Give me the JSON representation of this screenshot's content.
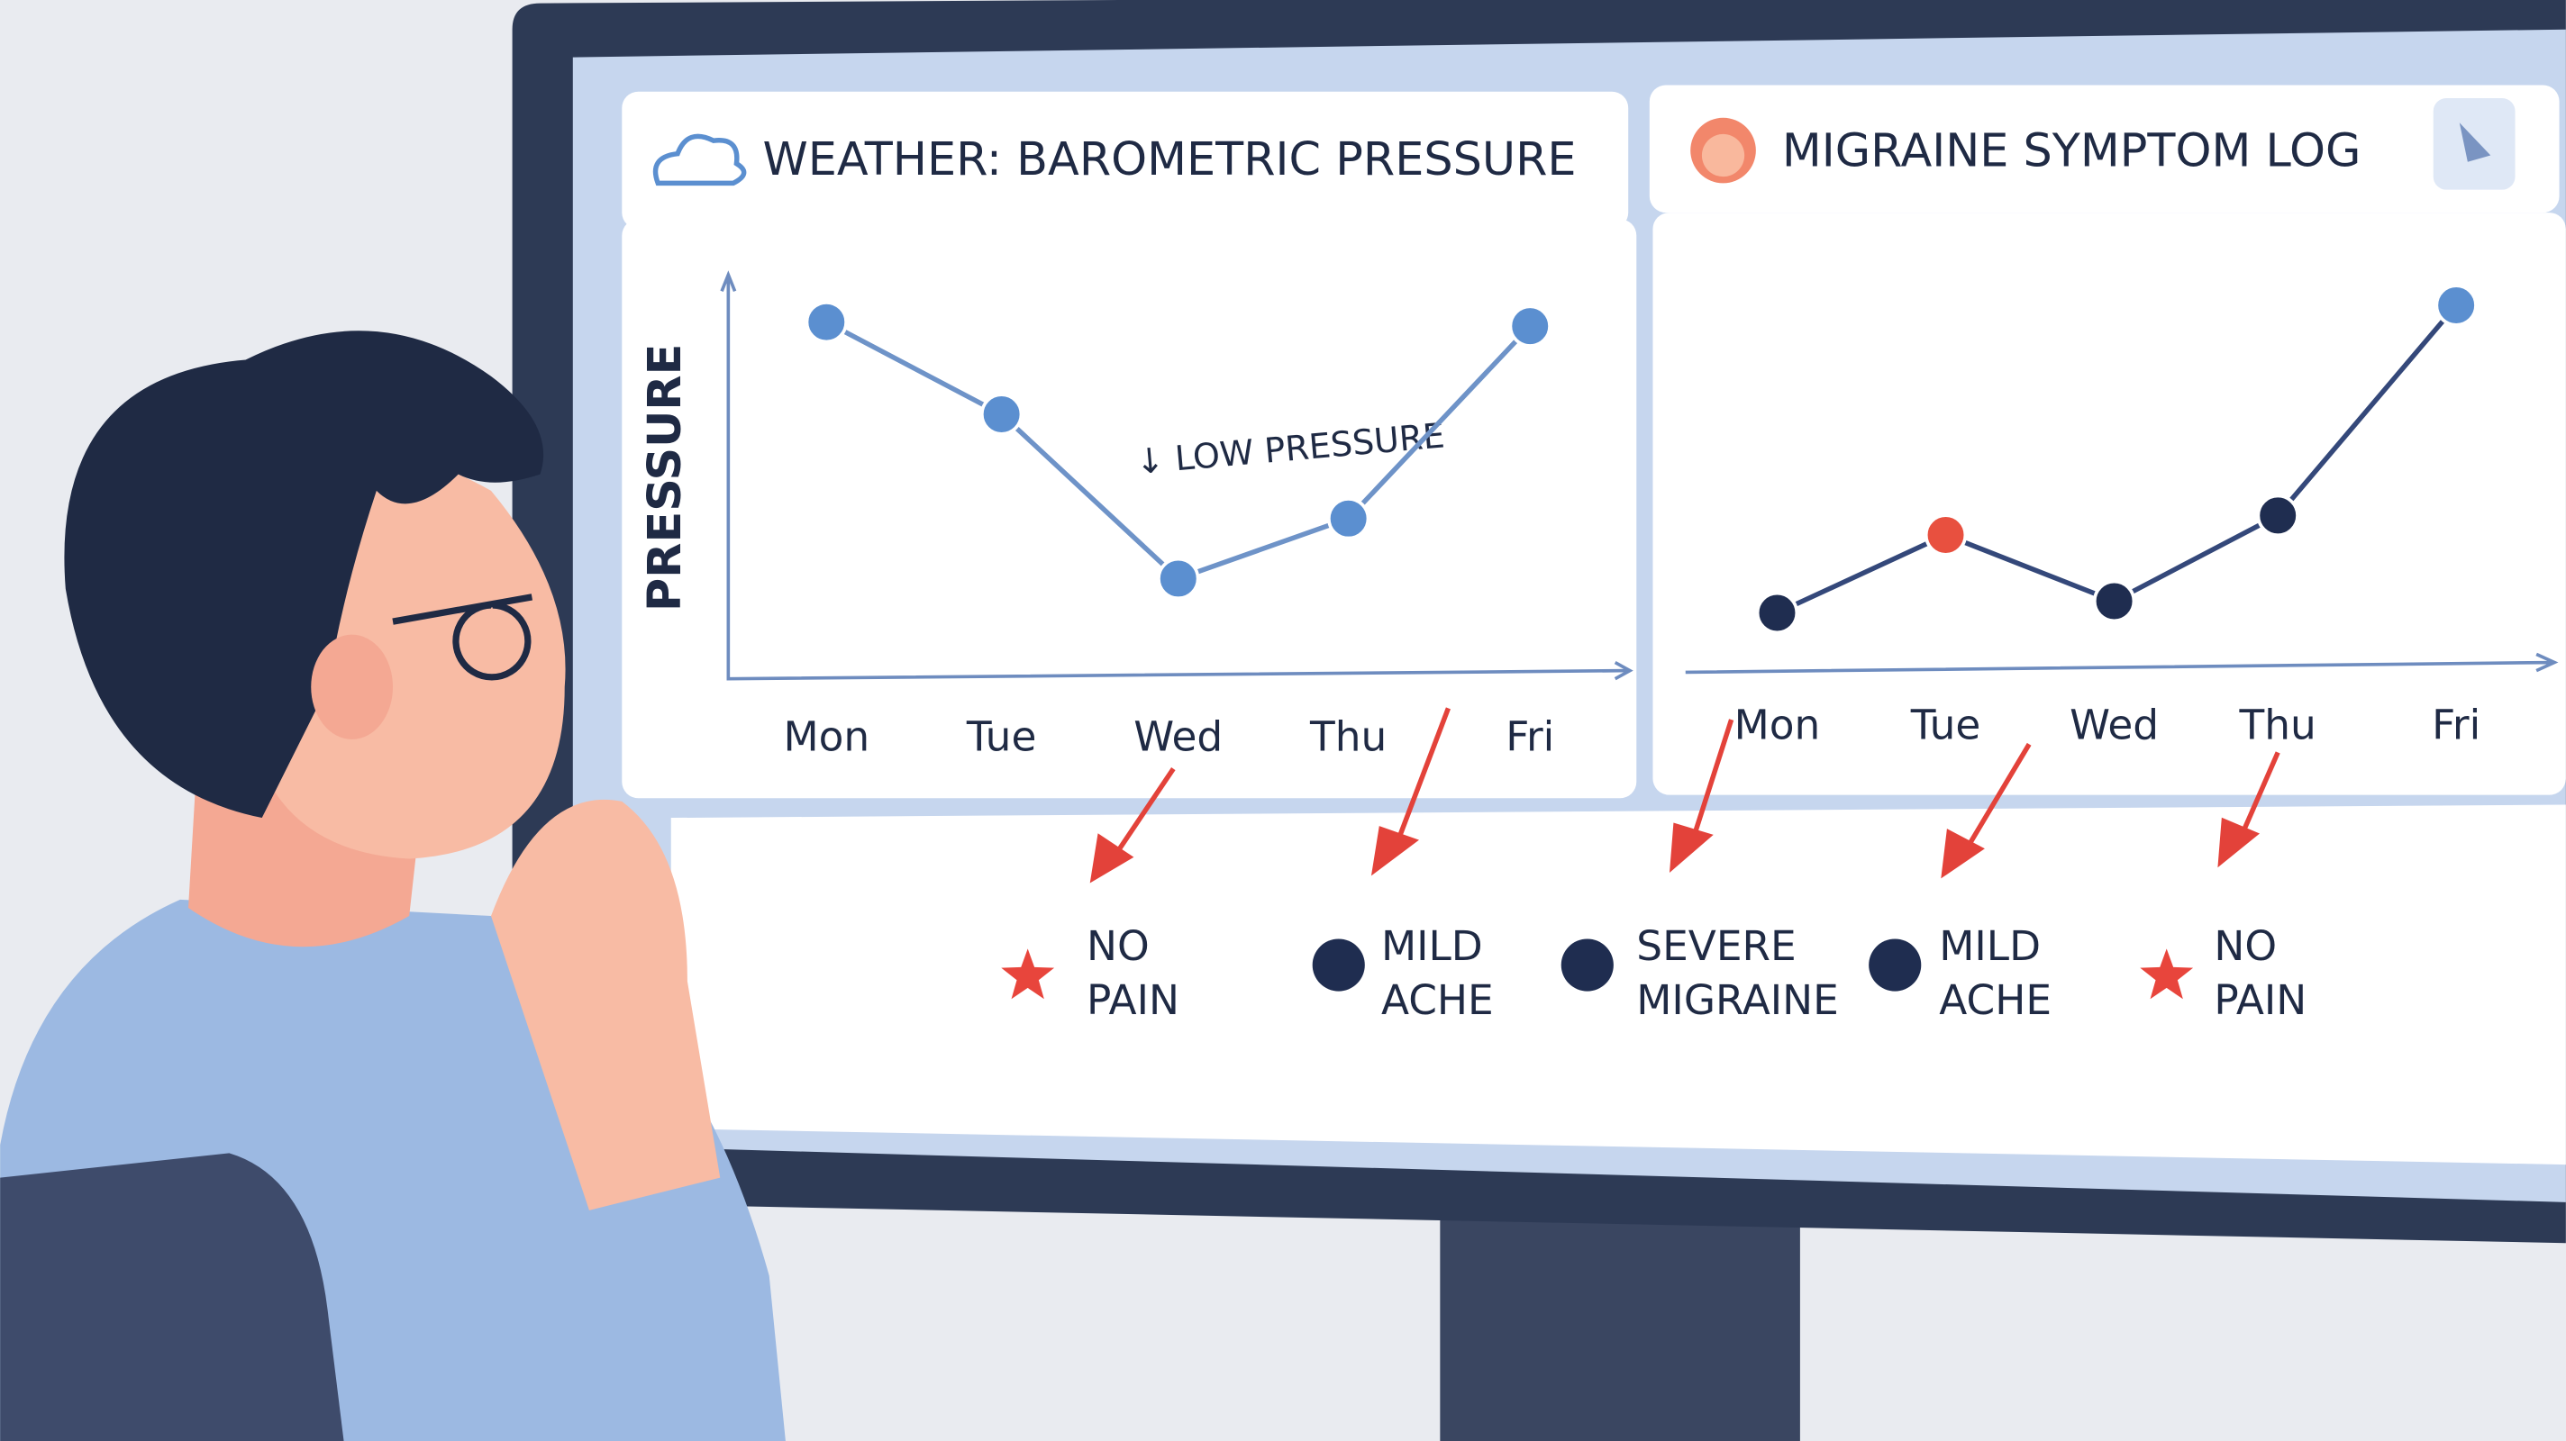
{
  "chart_data": [
    {
      "type": "line",
      "title": "WEATHER: BAROMETRIC PRESSURE",
      "y_label": "PRESSURE",
      "annotation": "↓ LOW PRESSURE",
      "categories": [
        "Mon",
        "Tue",
        "Wed",
        "Thu",
        "Fri"
      ],
      "values": [
        89,
        66,
        25,
        40,
        88
      ],
      "ylim": [
        0,
        100
      ],
      "color": "#5b8fd0",
      "line_color": "#6e93c8"
    },
    {
      "type": "line",
      "title": "MIGRAINE SYMPTOM LOG",
      "categories": [
        "Mon",
        "Tue",
        "Wed",
        "Thu",
        "Fri"
      ],
      "values": [
        14,
        34,
        17,
        39,
        93
      ],
      "ylim": [
        0,
        100
      ],
      "color": "#1f2d50",
      "line_color": "#34487a",
      "point_colors": [
        "#1f2d50",
        "#e8503f",
        "#1f2d50",
        "#1f2d50",
        "#5b8fd0"
      ]
    }
  ],
  "symptom_log": [
    {
      "lines": [
        "NO",
        "PAIN"
      ],
      "marker": "star",
      "color": "#e8453c",
      "text_color": "#6b7280"
    },
    {
      "lines": [
        "MILD",
        "ACHE"
      ],
      "marker": "circle",
      "color": "#1f2d50",
      "text_color": "#1f2a44"
    },
    {
      "lines": [
        "SEVERE",
        "MIGRAINE"
      ],
      "marker": "circle",
      "color": "#1f2d50",
      "text_color": "#1f2a44"
    },
    {
      "lines": [
        "MILD",
        "ACHE"
      ],
      "marker": "circle",
      "color": "#1f2d50",
      "text_color": "#1f2a44"
    },
    {
      "lines": [
        "NO",
        "PAIN"
      ],
      "marker": "star",
      "color": "#e8453c",
      "text_color": "#1f2a44"
    }
  ]
}
